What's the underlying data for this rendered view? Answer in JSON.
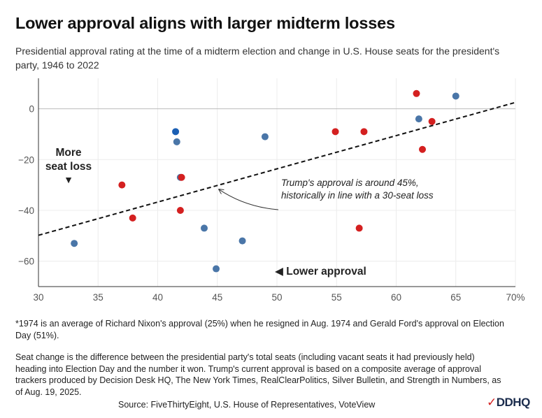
{
  "title": "Lower approval aligns with larger midterm losses",
  "subtitle": "Presidential approval rating at the time of a midterm election and change in U.S. House seats for the president's party, 1946 to 2022",
  "annotations": {
    "trump": "Trump's approval is around 45%, historically in line with a 30-seat loss",
    "more_loss": "More seat loss",
    "more_loss_arrow": "▼",
    "lower_approval": "◀ Lower approval"
  },
  "footnotes": {
    "nixon": "*1974 is an average of Richard Nixon's approval (25%) when he resigned in Aug. 1974 and Gerald Ford's approval on Election Day (51%).",
    "method": "Seat change is the difference between the presidential party's total seats (including vacant seats it had previously held) heading into Election Day and the number it won. Trump's current approval is based on a composite average of approval trackers produced by Decision Desk HQ, The New York Times, RealClearPolitics, Silver Bulletin, and Strength in Numbers, as of Aug. 19, 2025."
  },
  "source": "Source: FiveThirtyEight, U.S. House of Representatives, VoteView",
  "logo": {
    "check": "✓",
    "text": "DDHQ"
  },
  "colors": {
    "republican": "#d42020",
    "democrat": "#4a76a8",
    "highlight": "#1a5fb4"
  },
  "chart_data": {
    "type": "scatter",
    "xlim": [
      30,
      70
    ],
    "ylim": [
      -70,
      12
    ],
    "x_ticks": [
      30,
      35,
      40,
      45,
      50,
      55,
      60,
      65,
      70
    ],
    "x_tick_labels": [
      "30",
      "35",
      "40",
      "45",
      "50",
      "55",
      "60",
      "65",
      "70%"
    ],
    "y_ticks": [
      0,
      -20,
      -40,
      -60
    ],
    "y_tick_labels": [
      "0",
      "−20",
      "−40",
      "−60"
    ],
    "grid": true,
    "trendline": {
      "style": "dashed",
      "points": [
        [
          30,
          -49.8
        ],
        [
          70,
          2.5
        ]
      ]
    },
    "points": [
      {
        "x": 33,
        "y": -53,
        "party": "democrat"
      },
      {
        "x": 37,
        "y": -30,
        "party": "republican"
      },
      {
        "x": 37.9,
        "y": -43,
        "party": "republican"
      },
      {
        "x": 41.5,
        "y": -9,
        "party": "highlight"
      },
      {
        "x": 41.6,
        "y": -13,
        "party": "democrat"
      },
      {
        "x": 41.9,
        "y": -27,
        "party": "democrat"
      },
      {
        "x": 42,
        "y": -27,
        "party": "republican"
      },
      {
        "x": 41.9,
        "y": -40,
        "party": "republican"
      },
      {
        "x": 43.9,
        "y": -47,
        "party": "democrat"
      },
      {
        "x": 44.9,
        "y": -63,
        "party": "democrat"
      },
      {
        "x": 47.1,
        "y": -52,
        "party": "democrat"
      },
      {
        "x": 49,
        "y": -11,
        "party": "democrat"
      },
      {
        "x": 54.9,
        "y": -9,
        "party": "republican"
      },
      {
        "x": 56.9,
        "y": -47,
        "party": "republican"
      },
      {
        "x": 57.3,
        "y": -9,
        "party": "republican"
      },
      {
        "x": 61.7,
        "y": 6,
        "party": "republican"
      },
      {
        "x": 61.9,
        "y": -4,
        "party": "democrat"
      },
      {
        "x": 62.2,
        "y": -16,
        "party": "republican"
      },
      {
        "x": 63,
        "y": -5,
        "party": "republican"
      },
      {
        "x": 65,
        "y": 5,
        "party": "democrat"
      }
    ]
  }
}
